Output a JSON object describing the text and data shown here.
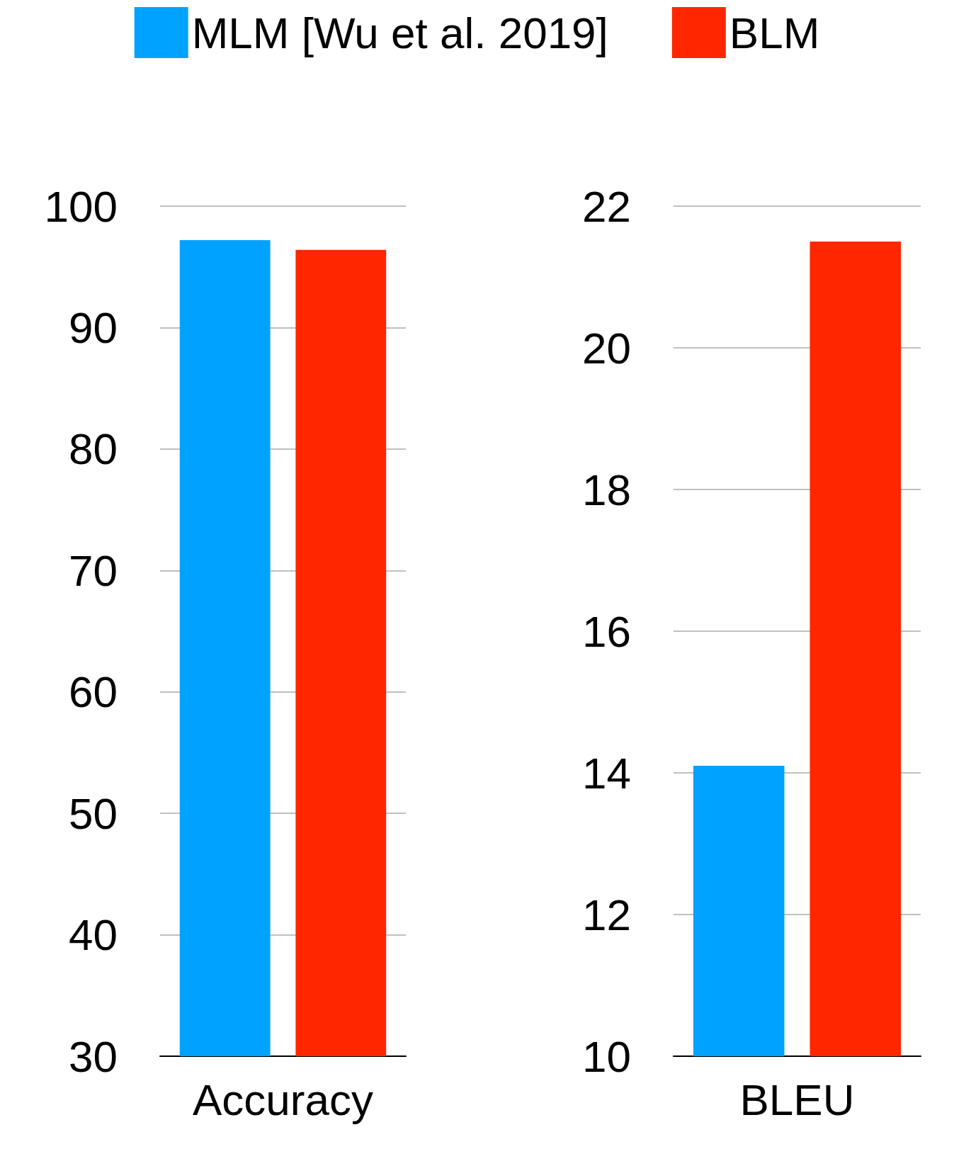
{
  "chart_data": [
    {
      "type": "bar",
      "categories": [
        "Accuracy"
      ],
      "series": [
        {
          "name": "MLM [Wu et al. 2019]",
          "color": "#00a2ff",
          "values": [
            97.2
          ]
        },
        {
          "name": "BLM",
          "color": "#ff2600",
          "values": [
            96.4
          ]
        }
      ],
      "ylim": [
        30,
        100
      ],
      "yticks": [
        30,
        40,
        50,
        60,
        70,
        80,
        90,
        100
      ],
      "grid": "y",
      "legend": "top"
    },
    {
      "type": "bar",
      "categories": [
        "BLEU"
      ],
      "series": [
        {
          "color": "#00a2ff",
          "values": [
            14.1
          ]
        },
        {
          "color": "#ff2600",
          "values": [
            21.5
          ]
        }
      ],
      "ylim": [
        10,
        22
      ],
      "yticks": [
        10,
        12,
        14,
        16,
        18,
        20,
        22
      ],
      "grid": "y",
      "legend": false
    }
  ]
}
